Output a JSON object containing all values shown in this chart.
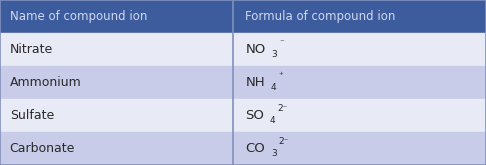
{
  "col1_header": "Name of compound ion",
  "col2_header": "Formula of compound ion",
  "rows": [
    {
      "name": "Nitrate",
      "base": "NO",
      "sub": "3",
      "sup": "⁻"
    },
    {
      "name": "Ammonium",
      "base": "NH",
      "sub": "4",
      "sup": "⁺"
    },
    {
      "name": "Sulfate",
      "base": "SO",
      "sub": "4",
      "sup": "2⁻"
    },
    {
      "name": "Carbonate",
      "base": "CO",
      "sub": "3",
      "sup": "2⁻"
    }
  ],
  "header_bg": "#3d5c9e",
  "header_fg": "#d0d8f0",
  "row_colors": [
    "#e8eaf5",
    "#c8cce8"
  ],
  "divider_color": "#8090bb",
  "text_color": "#2a2a2a",
  "col_split": 0.48,
  "figsize": [
    4.86,
    1.65
  ],
  "dpi": 100,
  "base_fontsize": 9.5,
  "sub_fontsize": 6.5,
  "name_fontsize": 9.0,
  "header_fontsize": 8.5
}
